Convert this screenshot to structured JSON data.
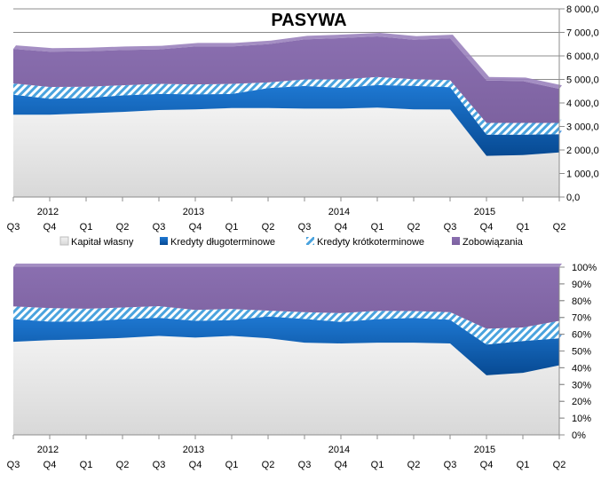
{
  "chart_data": [
    {
      "type": "area",
      "stacked": true,
      "title": "PASYWA",
      "x": [
        "Q3",
        "Q4",
        "Q1",
        "Q2",
        "Q3",
        "Q4",
        "Q1",
        "Q2",
        "Q3",
        "Q4",
        "Q1",
        "Q2",
        "Q3",
        "Q4",
        "Q1",
        "Q2"
      ],
      "year_labels": [
        "2012",
        "2013",
        "2014",
        "2015"
      ],
      "y_ticks": [
        "0,0",
        "1 000,0",
        "2 000,0",
        "3 000,0",
        "4 000,0",
        "5 000,0",
        "6 000,0",
        "7 000,0",
        "8 000,0"
      ],
      "ylim": [
        0,
        8000
      ],
      "grid": true,
      "legend": "bottom",
      "series": [
        {
          "name": "Kapitał własny",
          "color": "#e8e8e8",
          "values": [
            3500,
            3500,
            3560,
            3620,
            3700,
            3730,
            3780,
            3780,
            3760,
            3760,
            3800,
            3730,
            3720,
            1750,
            1780,
            1900
          ]
        },
        {
          "name": "Kredyty długoterminowe",
          "color": "#0a5fb4",
          "values": [
            850,
            680,
            650,
            700,
            680,
            640,
            600,
            850,
            960,
            880,
            960,
            1000,
            950,
            900,
            870,
            770
          ]
        },
        {
          "name": "Kredyty krótkoterminowe",
          "color": "#9cc8e8",
          "pattern": "hatch",
          "values": [
            480,
            500,
            480,
            430,
            430,
            420,
            430,
            240,
            280,
            360,
            340,
            280,
            300,
            500,
            500,
            480
          ]
        },
        {
          "name": "Zobowiązania",
          "color": "#8064a2",
          "values": [
            1470,
            1500,
            1510,
            1500,
            1470,
            1610,
            1590,
            1630,
            1700,
            1760,
            1730,
            1680,
            1780,
            1800,
            1780,
            1450
          ]
        }
      ]
    },
    {
      "type": "area",
      "stacked": true,
      "percent": true,
      "x": [
        "Q3",
        "Q4",
        "Q1",
        "Q2",
        "Q3",
        "Q4",
        "Q1",
        "Q2",
        "Q3",
        "Q4",
        "Q1",
        "Q2",
        "Q3",
        "Q4",
        "Q1",
        "Q2"
      ],
      "year_labels": [
        "2012",
        "2013",
        "2014",
        "2015"
      ],
      "y_ticks": [
        "0%",
        "10%",
        "20%",
        "30%",
        "40%",
        "50%",
        "60%",
        "70%",
        "80%",
        "90%",
        "100%"
      ],
      "ylim": [
        0,
        100
      ],
      "grid": true,
      "legend": "none",
      "series": [
        {
          "name": "Kapitał własny",
          "color": "#e8e8e8",
          "values": [
            55.5,
            56.5,
            57.0,
            57.8,
            59.0,
            58.0,
            59.0,
            57.6,
            55.0,
            54.5,
            55.0,
            55.0,
            54.5,
            35.5,
            37.0,
            41.5
          ]
        },
        {
          "name": "Kredyty długoterminowe",
          "color": "#0a5fb4",
          "values": [
            13.5,
            11.0,
            10.5,
            11.2,
            10.8,
            10.0,
            9.4,
            13.0,
            14.1,
            12.8,
            14.0,
            14.7,
            14.1,
            18.3,
            19.0,
            16.0
          ]
        },
        {
          "name": "Kredyty krótkoterminowe",
          "color": "#9cc8e8",
          "pattern": "hatch",
          "values": [
            7.6,
            8.1,
            7.7,
            6.9,
            6.9,
            6.5,
            6.7,
            3.5,
            4.1,
            5.3,
            4.9,
            4.1,
            4.6,
            9.5,
            8.0,
            10.5
          ]
        },
        {
          "name": "Zobowiązania",
          "color": "#8064a2",
          "values": [
            23.4,
            24.4,
            24.8,
            24.1,
            23.3,
            25.5,
            24.9,
            25.9,
            26.8,
            27.4,
            26.1,
            26.2,
            26.8,
            36.7,
            36.0,
            32.0
          ]
        }
      ]
    }
  ]
}
